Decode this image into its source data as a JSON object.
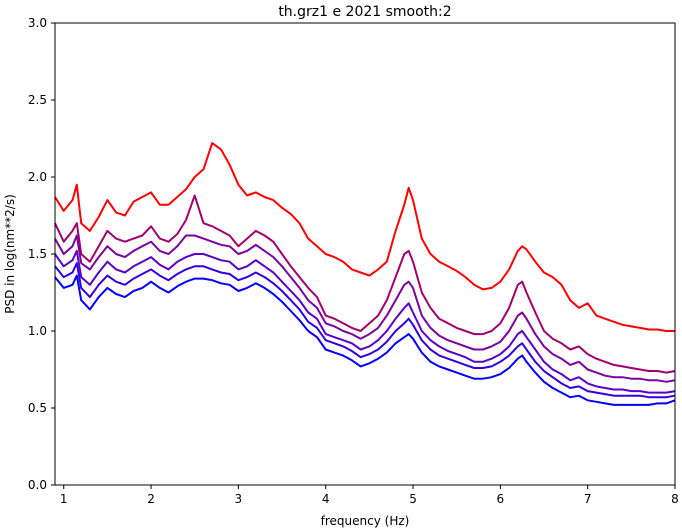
{
  "chart_data": {
    "type": "line",
    "title": "th.grz1 e 2021 smooth:2",
    "xlabel": "frequency (Hz)",
    "ylabel": "PSD in log(nm**2/s)",
    "xlim": [
      0.9,
      8.0
    ],
    "ylim": [
      0.0,
      3.0
    ],
    "grid": false,
    "legend": "none",
    "x_ticks": [
      "1",
      "2",
      "3",
      "4",
      "5",
      "6",
      "7",
      "8"
    ],
    "y_ticks": [
      "0.0",
      "0.5",
      "1.0",
      "1.5",
      "2.0",
      "2.5",
      "3.0"
    ],
    "x": [
      0.9,
      1.0,
      1.1,
      1.15,
      1.2,
      1.3,
      1.4,
      1.5,
      1.6,
      1.7,
      1.8,
      1.9,
      2.0,
      2.1,
      2.2,
      2.3,
      2.4,
      2.5,
      2.6,
      2.7,
      2.8,
      2.9,
      3.0,
      3.1,
      3.2,
      3.3,
      3.4,
      3.5,
      3.6,
      3.7,
      3.8,
      3.9,
      4.0,
      4.1,
      4.2,
      4.3,
      4.4,
      4.5,
      4.6,
      4.7,
      4.8,
      4.9,
      4.95,
      5.0,
      5.1,
      5.2,
      5.3,
      5.4,
      5.5,
      5.6,
      5.7,
      5.8,
      5.9,
      6.0,
      6.1,
      6.2,
      6.25,
      6.3,
      6.4,
      6.5,
      6.6,
      6.7,
      6.8,
      6.9,
      7.0,
      7.1,
      7.2,
      7.3,
      7.4,
      7.5,
      7.6,
      7.7,
      7.8,
      7.9,
      8.0
    ],
    "series": [
      {
        "color": "#ff0000",
        "values": [
          1.87,
          1.78,
          1.85,
          1.95,
          1.7,
          1.65,
          1.74,
          1.85,
          1.77,
          1.75,
          1.84,
          1.87,
          1.9,
          1.82,
          1.82,
          1.87,
          1.92,
          2.0,
          2.05,
          2.22,
          2.18,
          2.08,
          1.95,
          1.88,
          1.9,
          1.87,
          1.85,
          1.8,
          1.76,
          1.7,
          1.6,
          1.55,
          1.5,
          1.48,
          1.45,
          1.4,
          1.38,
          1.36,
          1.4,
          1.45,
          1.65,
          1.82,
          1.93,
          1.85,
          1.6,
          1.5,
          1.45,
          1.42,
          1.39,
          1.35,
          1.3,
          1.27,
          1.28,
          1.32,
          1.4,
          1.52,
          1.55,
          1.53,
          1.45,
          1.38,
          1.35,
          1.3,
          1.2,
          1.15,
          1.18,
          1.1,
          1.08,
          1.06,
          1.04,
          1.03,
          1.02,
          1.01,
          1.01,
          1.0,
          1.0
        ]
      },
      {
        "color": "#a0006e",
        "values": [
          1.7,
          1.58,
          1.65,
          1.7,
          1.5,
          1.45,
          1.55,
          1.65,
          1.6,
          1.58,
          1.6,
          1.62,
          1.68,
          1.6,
          1.58,
          1.63,
          1.72,
          1.88,
          1.7,
          1.68,
          1.65,
          1.62,
          1.55,
          1.6,
          1.65,
          1.62,
          1.58,
          1.5,
          1.42,
          1.35,
          1.28,
          1.22,
          1.1,
          1.08,
          1.05,
          1.02,
          1.0,
          1.05,
          1.1,
          1.2,
          1.35,
          1.5,
          1.52,
          1.45,
          1.25,
          1.15,
          1.08,
          1.05,
          1.02,
          1.0,
          0.98,
          0.98,
          1.0,
          1.05,
          1.15,
          1.3,
          1.32,
          1.25,
          1.12,
          1.0,
          0.95,
          0.92,
          0.88,
          0.9,
          0.85,
          0.82,
          0.8,
          0.78,
          0.77,
          0.76,
          0.75,
          0.74,
          0.74,
          0.73,
          0.74
        ]
      },
      {
        "color": "#7a00a0",
        "values": [
          1.6,
          1.5,
          1.55,
          1.62,
          1.44,
          1.4,
          1.48,
          1.55,
          1.5,
          1.48,
          1.52,
          1.55,
          1.58,
          1.52,
          1.5,
          1.55,
          1.62,
          1.62,
          1.6,
          1.58,
          1.56,
          1.55,
          1.5,
          1.52,
          1.56,
          1.52,
          1.48,
          1.42,
          1.35,
          1.28,
          1.2,
          1.15,
          1.05,
          1.03,
          1.0,
          0.98,
          0.95,
          0.98,
          1.02,
          1.1,
          1.2,
          1.3,
          1.32,
          1.28,
          1.1,
          1.02,
          0.97,
          0.94,
          0.92,
          0.9,
          0.88,
          0.88,
          0.9,
          0.93,
          1.0,
          1.1,
          1.12,
          1.08,
          0.98,
          0.9,
          0.85,
          0.82,
          0.78,
          0.8,
          0.75,
          0.73,
          0.71,
          0.7,
          0.7,
          0.69,
          0.69,
          0.68,
          0.68,
          0.67,
          0.68
        ]
      },
      {
        "color": "#5a00c8",
        "values": [
          1.5,
          1.42,
          1.46,
          1.52,
          1.35,
          1.3,
          1.38,
          1.45,
          1.4,
          1.38,
          1.42,
          1.45,
          1.48,
          1.43,
          1.4,
          1.45,
          1.48,
          1.5,
          1.5,
          1.48,
          1.46,
          1.45,
          1.4,
          1.42,
          1.46,
          1.42,
          1.38,
          1.32,
          1.26,
          1.2,
          1.12,
          1.08,
          0.98,
          0.96,
          0.94,
          0.92,
          0.88,
          0.9,
          0.94,
          1.0,
          1.08,
          1.15,
          1.18,
          1.12,
          1.0,
          0.94,
          0.9,
          0.87,
          0.85,
          0.83,
          0.8,
          0.8,
          0.82,
          0.85,
          0.9,
          0.98,
          1.0,
          0.96,
          0.88,
          0.8,
          0.75,
          0.72,
          0.68,
          0.7,
          0.66,
          0.64,
          0.63,
          0.62,
          0.62,
          0.61,
          0.61,
          0.6,
          0.6,
          0.6,
          0.61
        ]
      },
      {
        "color": "#3000e0",
        "values": [
          1.42,
          1.35,
          1.38,
          1.44,
          1.28,
          1.22,
          1.3,
          1.36,
          1.32,
          1.3,
          1.34,
          1.37,
          1.4,
          1.36,
          1.33,
          1.37,
          1.4,
          1.42,
          1.42,
          1.4,
          1.38,
          1.37,
          1.33,
          1.35,
          1.38,
          1.35,
          1.31,
          1.26,
          1.2,
          1.14,
          1.06,
          1.02,
          0.94,
          0.92,
          0.9,
          0.87,
          0.83,
          0.85,
          0.88,
          0.93,
          1.0,
          1.05,
          1.08,
          1.04,
          0.94,
          0.88,
          0.84,
          0.82,
          0.8,
          0.78,
          0.76,
          0.76,
          0.77,
          0.8,
          0.84,
          0.9,
          0.92,
          0.88,
          0.8,
          0.74,
          0.7,
          0.66,
          0.63,
          0.64,
          0.61,
          0.6,
          0.59,
          0.58,
          0.58,
          0.58,
          0.58,
          0.57,
          0.57,
          0.57,
          0.58
        ]
      },
      {
        "color": "#0000ff",
        "values": [
          1.35,
          1.28,
          1.3,
          1.36,
          1.2,
          1.14,
          1.22,
          1.28,
          1.24,
          1.22,
          1.26,
          1.28,
          1.32,
          1.28,
          1.25,
          1.29,
          1.32,
          1.34,
          1.34,
          1.33,
          1.31,
          1.3,
          1.26,
          1.28,
          1.31,
          1.28,
          1.24,
          1.19,
          1.13,
          1.07,
          1.0,
          0.96,
          0.88,
          0.86,
          0.84,
          0.81,
          0.77,
          0.79,
          0.82,
          0.86,
          0.92,
          0.96,
          0.98,
          0.95,
          0.86,
          0.8,
          0.77,
          0.75,
          0.73,
          0.71,
          0.69,
          0.69,
          0.7,
          0.72,
          0.76,
          0.82,
          0.84,
          0.8,
          0.73,
          0.67,
          0.63,
          0.6,
          0.57,
          0.58,
          0.55,
          0.54,
          0.53,
          0.52,
          0.52,
          0.52,
          0.52,
          0.52,
          0.53,
          0.53,
          0.55
        ]
      }
    ]
  }
}
